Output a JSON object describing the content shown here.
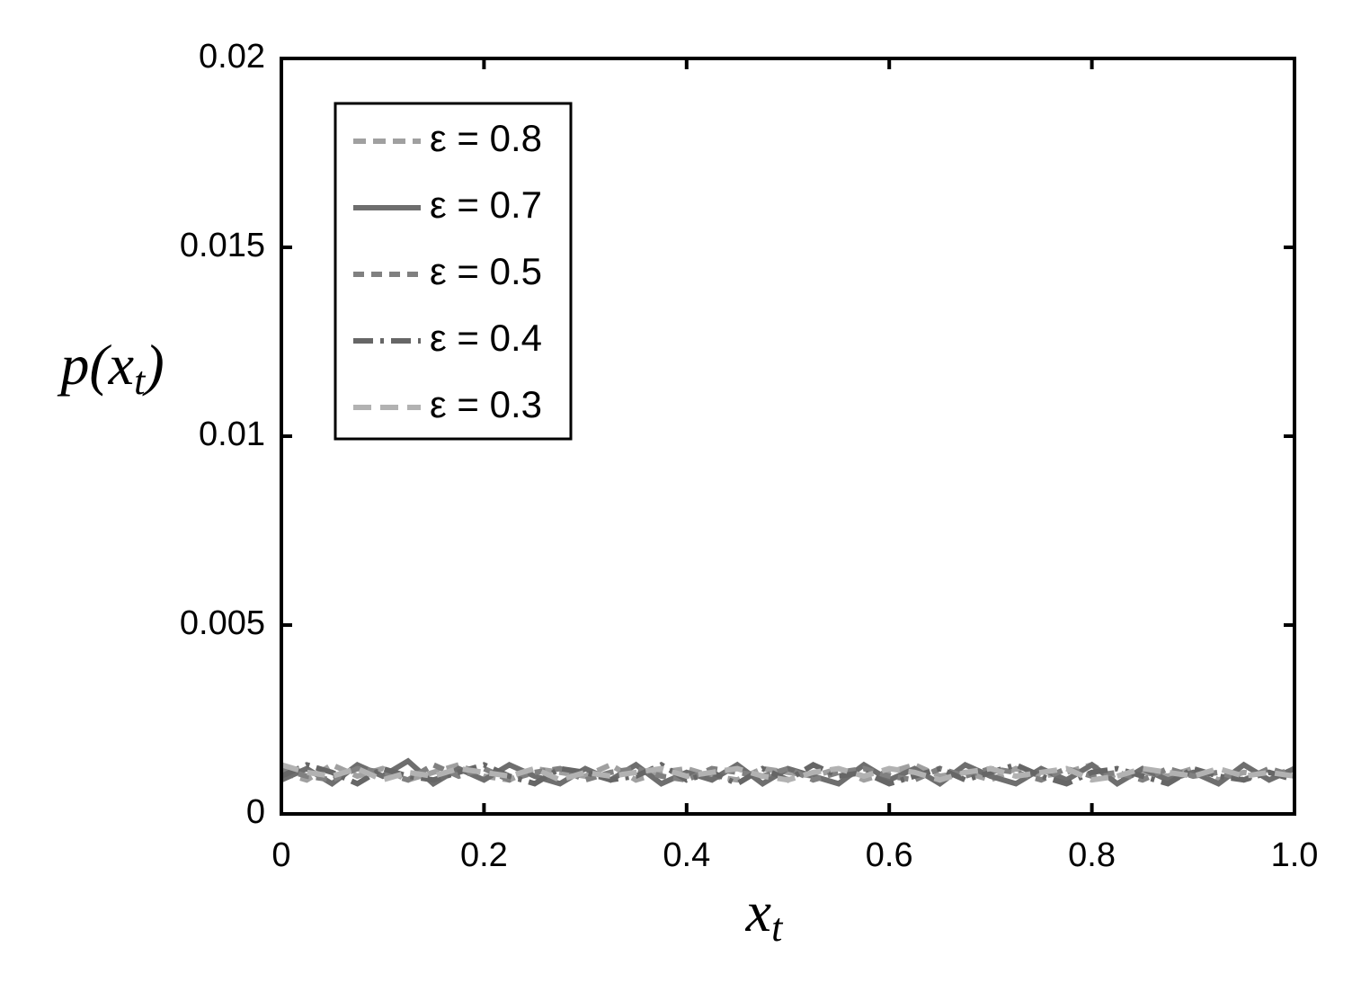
{
  "chart_data": {
    "type": "line",
    "xlabel_parts": [
      "x",
      "t"
    ],
    "ylabel_parts": [
      "p(x",
      "t",
      ")"
    ],
    "x": [
      0,
      0.025,
      0.05,
      0.075,
      0.1,
      0.125,
      0.15,
      0.175,
      0.2,
      0.225,
      0.25,
      0.275,
      0.3,
      0.325,
      0.35,
      0.375,
      0.4,
      0.425,
      0.45,
      0.475,
      0.5,
      0.525,
      0.55,
      0.575,
      0.6,
      0.625,
      0.65,
      0.675,
      0.7,
      0.725,
      0.75,
      0.775,
      0.8,
      0.825,
      0.85,
      0.875,
      0.9,
      0.925,
      0.95,
      0.975,
      1
    ],
    "series": [
      {
        "name": "ε = 0.8",
        "color": "#a0a0a0",
        "dash": "14 8",
        "values": [
          0.0011,
          0.0009,
          0.0013,
          0.001,
          0.0012,
          0.0009,
          0.0011,
          0.0013,
          0.001,
          0.0009,
          0.0012,
          0.0011,
          0.001,
          0.0013,
          0.0009,
          0.0011,
          0.0012,
          0.001,
          0.0009,
          0.0012,
          0.0011,
          0.001,
          0.0012,
          0.0009,
          0.0011,
          0.0013,
          0.001,
          0.0011,
          0.0009,
          0.0012,
          0.001,
          0.0011,
          0.0013,
          0.0009,
          0.0011,
          0.001,
          0.0012,
          0.0009,
          0.0011,
          0.001,
          0.0012
        ]
      },
      {
        "name": "ε = 0.7",
        "color": "#6e6e6e",
        "dash": "",
        "values": [
          0.0009,
          0.0012,
          0.0008,
          0.0013,
          0.001,
          0.0014,
          0.0008,
          0.0012,
          0.0009,
          0.0013,
          0.001,
          0.0008,
          0.0012,
          0.0009,
          0.0013,
          0.0008,
          0.0011,
          0.0009,
          0.0013,
          0.0008,
          0.0012,
          0.001,
          0.0008,
          0.0013,
          0.0009,
          0.0012,
          0.0008,
          0.0013,
          0.001,
          0.0008,
          0.0012,
          0.0009,
          0.0013,
          0.0008,
          0.0012,
          0.0009,
          0.0011,
          0.0008,
          0.0013,
          0.0009,
          0.0012
        ]
      },
      {
        "name": "ε = 0.5",
        "color": "#808080",
        "dash": "12 8",
        "values": [
          0.0012,
          0.001,
          0.0009,
          0.0012,
          0.0011,
          0.0009,
          0.0013,
          0.001,
          0.0012,
          0.0009,
          0.0011,
          0.0012,
          0.0009,
          0.0011,
          0.0012,
          0.001,
          0.0009,
          0.0012,
          0.0011,
          0.001,
          0.0012,
          0.0009,
          0.0011,
          0.0012,
          0.001,
          0.0009,
          0.0012,
          0.001,
          0.0012,
          0.0011,
          0.0009,
          0.0012,
          0.001,
          0.0011,
          0.0009,
          0.0012,
          0.001,
          0.0011,
          0.0009,
          0.0012,
          0.001
        ]
      },
      {
        "name": "ε = 0.4",
        "color": "#666666",
        "dash": "22 8 4 8",
        "values": [
          0.001,
          0.0013,
          0.0011,
          0.0008,
          0.0012,
          0.001,
          0.0009,
          0.0011,
          0.0013,
          0.001,
          0.0008,
          0.0012,
          0.0011,
          0.0009,
          0.001,
          0.0013,
          0.0009,
          0.0011,
          0.0008,
          0.0012,
          0.0009,
          0.0013,
          0.001,
          0.0011,
          0.0008,
          0.001,
          0.0012,
          0.0009,
          0.0011,
          0.0013,
          0.001,
          0.0008,
          0.0011,
          0.0012,
          0.001,
          0.0008,
          0.0012,
          0.001,
          0.0009,
          0.0011,
          0.0009
        ]
      },
      {
        "name": "ε = 0.3",
        "color": "#b2b2b2",
        "dash": "20 10",
        "values": [
          0.0013,
          0.0011,
          0.001,
          0.0012,
          0.0009,
          0.0011,
          0.001,
          0.0012,
          0.0011,
          0.001,
          0.0012,
          0.0009,
          0.0011,
          0.001,
          0.0011,
          0.0012,
          0.001,
          0.0011,
          0.0012,
          0.001,
          0.0009,
          0.0011,
          0.0012,
          0.001,
          0.0012,
          0.0011,
          0.0009,
          0.0011,
          0.0012,
          0.001,
          0.0011,
          0.0012,
          0.0009,
          0.001,
          0.0012,
          0.0011,
          0.001,
          0.0012,
          0.001,
          0.0011,
          0.001
        ]
      }
    ],
    "xlim": [
      0,
      1
    ],
    "xticks": [
      0,
      0.2,
      0.4,
      0.6,
      0.8,
      {
        "value": 1,
        "label": "1.0"
      }
    ],
    "ylim": [
      0,
      0.02
    ],
    "yticks": [
      0,
      0.005,
      0.01,
      0.015,
      0.02
    ],
    "grid": false,
    "legend": "upper left"
  }
}
